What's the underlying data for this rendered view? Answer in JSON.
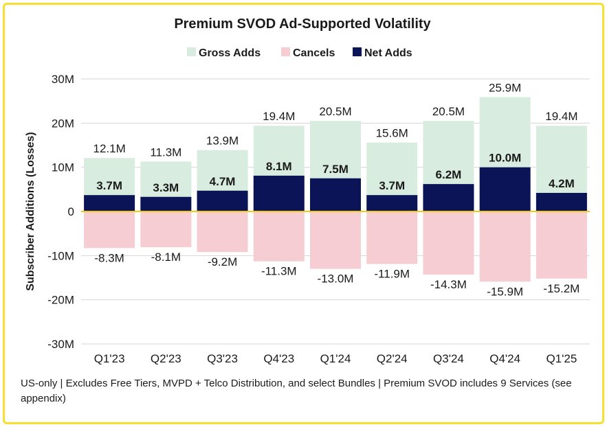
{
  "chart_data": {
    "type": "bar",
    "title": "Premium SVOD Ad-Supported Volatility",
    "ylabel": "Subscriber Additions (Losses)",
    "xlabel": "",
    "ylim": [
      -30,
      30
    ],
    "yticks": [
      30,
      20,
      10,
      0,
      -10,
      -20,
      -30
    ],
    "ytick_labels": [
      "30M",
      "20M",
      "10M",
      "0",
      "-10M",
      "-20M",
      "-30M"
    ],
    "categories": [
      "Q1'23",
      "Q2'23",
      "Q3'23",
      "Q4'23",
      "Q1'24",
      "Q2'24",
      "Q3'24",
      "Q4'24",
      "Q1'25"
    ],
    "series": [
      {
        "name": "Gross Adds",
        "color": "#d9ece0",
        "values": [
          12.1,
          11.3,
          13.9,
          19.4,
          20.5,
          15.6,
          20.5,
          25.9,
          19.4
        ],
        "labels": [
          "12.1M",
          "11.3M",
          "13.9M",
          "19.4M",
          "20.5M",
          "15.6M",
          "20.5M",
          "25.9M",
          "19.4M"
        ]
      },
      {
        "name": "Cancels",
        "color": "#f5cdd2",
        "values": [
          -8.3,
          -8.1,
          -9.2,
          -11.3,
          -13.0,
          -11.9,
          -14.3,
          -15.9,
          -15.2
        ],
        "labels": [
          "-8.3M",
          "-8.1M",
          "-9.2M",
          "-11.3M",
          "-13.0M",
          "-11.9M",
          "-14.3M",
          "-15.9M",
          "-15.2M"
        ]
      },
      {
        "name": "Net Adds",
        "color": "#0b1456",
        "values": [
          3.7,
          3.3,
          4.7,
          8.1,
          7.5,
          3.7,
          6.2,
          10.0,
          4.2
        ],
        "labels": [
          "3.7M",
          "3.3M",
          "4.7M",
          "8.1M",
          "7.5M",
          "3.7M",
          "6.2M",
          "10.0M",
          "4.2M"
        ]
      }
    ],
    "legend": "top-center",
    "zero_line_color": "#f2c919",
    "gridlines": true
  },
  "footnote": "US-only | Excludes Free Tiers, MVPD + Telco Distribution, and select Bundles | Premium SVOD includes 9 Services (see appendix)"
}
